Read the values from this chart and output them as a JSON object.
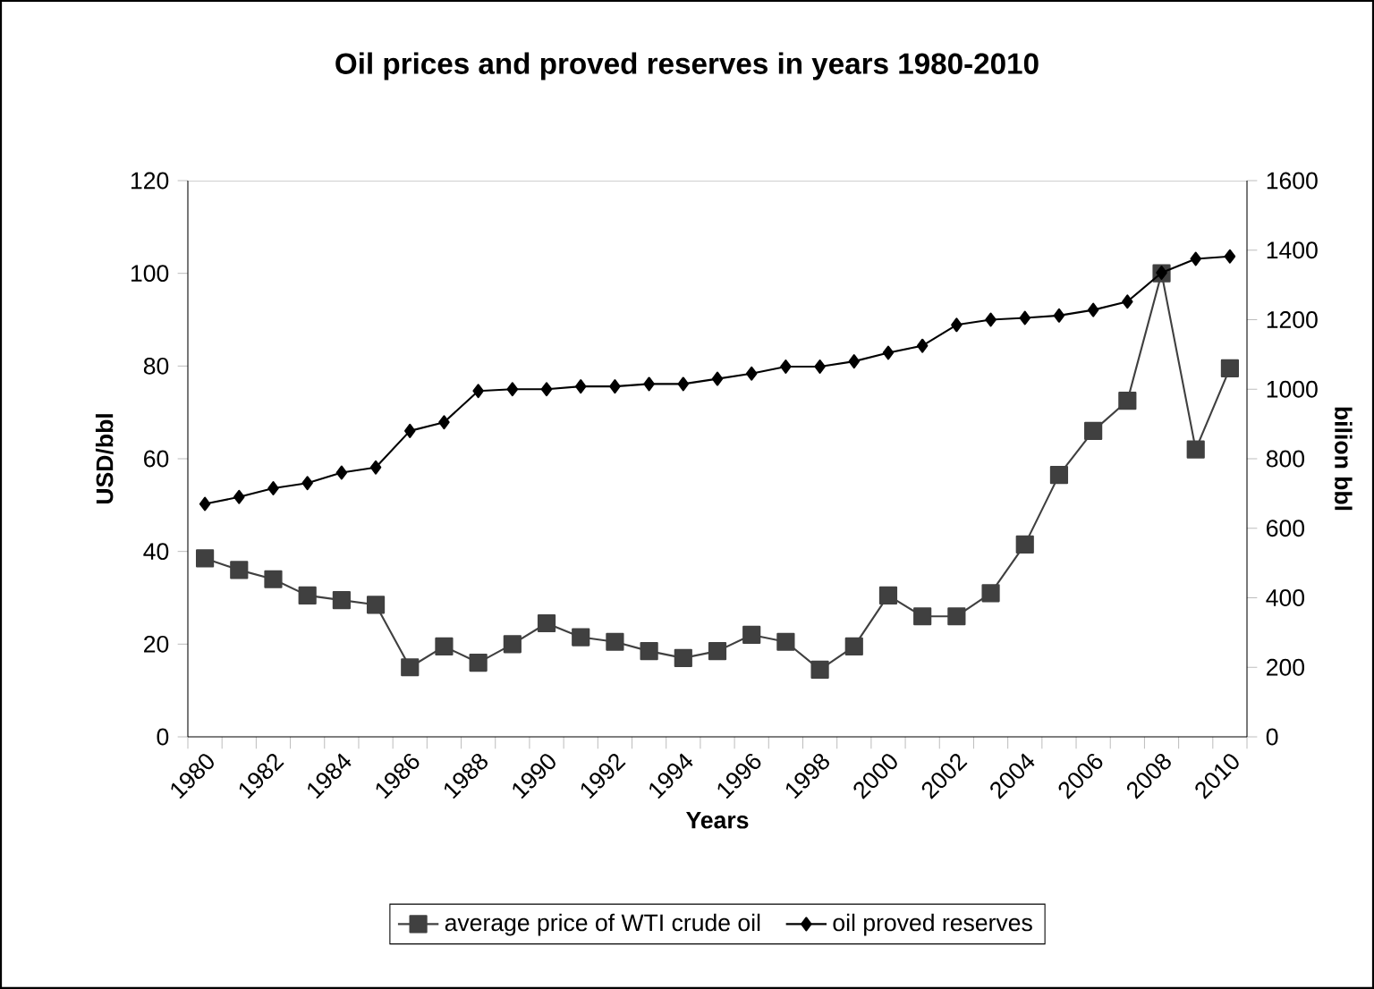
{
  "chart_data": {
    "type": "line",
    "title": "Oil prices and proved reserves in years 1980-2010",
    "xlabel": "Years",
    "ylabel": "USD/bbl",
    "y2label": "bilion bbl",
    "categories": [
      "1980",
      null,
      "1982",
      null,
      "1984",
      null,
      "1986",
      null,
      "1988",
      null,
      "1990",
      null,
      "1992",
      null,
      "1994",
      null,
      "1996",
      null,
      "1998",
      null,
      "2000",
      null,
      "2002",
      null,
      "2004",
      null,
      "2006",
      null,
      "2008",
      null,
      "2010"
    ],
    "series": [
      {
        "name": "average price of WTI crude oil",
        "color": "#404040",
        "marker": "square",
        "axis": "y",
        "values": [
          38.5,
          36,
          34,
          30.5,
          29.5,
          28.5,
          15,
          19.5,
          16,
          20,
          24.5,
          21.5,
          20.5,
          18.5,
          17,
          18.5,
          22,
          20.5,
          14.5,
          19.5,
          30.5,
          26,
          26,
          31,
          41.5,
          56.5,
          66,
          72.5,
          100,
          62,
          79.5
        ]
      },
      {
        "name": "oil proved reserves",
        "color": "#000000",
        "marker": "diamond",
        "axis": "y2",
        "values": [
          670,
          690,
          715,
          730,
          760,
          775,
          880,
          905,
          995,
          1000,
          1000,
          1008,
          1008,
          1015,
          1015,
          1030,
          1045,
          1065,
          1065,
          1080,
          1105,
          1125,
          1185,
          1200,
          1205,
          1212,
          1228,
          1252,
          1335,
          1375,
          1382
        ]
      }
    ],
    "ylim": [
      0,
      120
    ],
    "yticks": [
      0,
      20,
      40,
      60,
      80,
      100,
      120
    ],
    "y2lim": [
      0,
      1600
    ],
    "y2ticks": [
      0,
      200,
      400,
      600,
      800,
      1000,
      1200,
      1400,
      1600
    ],
    "grid": false,
    "legend": "bottom",
    "line_style": "solid"
  }
}
